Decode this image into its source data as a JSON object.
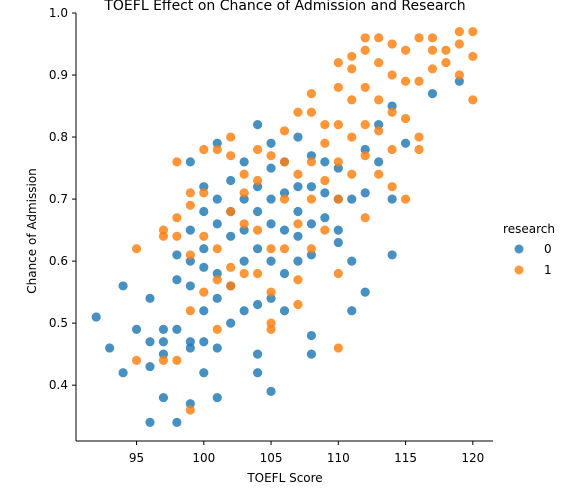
{
  "chart_data": {
    "type": "scatter",
    "title": "TOEFL Effect on Chance of Admission and Research",
    "xlabel": "TOEFL Score",
    "ylabel": "Chance of Admission",
    "xlim": [
      90.5,
      121.5
    ],
    "ylim": [
      0.31,
      1.0
    ],
    "xticks": [
      95,
      100,
      105,
      110,
      115,
      120
    ],
    "yticks": [
      0.4,
      0.5,
      0.6,
      0.7,
      0.8,
      0.9,
      1.0
    ],
    "grid": false,
    "legend": {
      "title": "research",
      "placement": "right",
      "entries": [
        "0",
        "1"
      ]
    },
    "series": [
      {
        "name": "0",
        "color": "#1f77b4",
        "points": [
          [
            92,
            0.51
          ],
          [
            93,
            0.46
          ],
          [
            94,
            0.42
          ],
          [
            94,
            0.56
          ],
          [
            95,
            0.49
          ],
          [
            96,
            0.54
          ],
          [
            96,
            0.47
          ],
          [
            96,
            0.43
          ],
          [
            96,
            0.34
          ],
          [
            97,
            0.49
          ],
          [
            97,
            0.47
          ],
          [
            97,
            0.45
          ],
          [
            97,
            0.38
          ],
          [
            98,
            0.49
          ],
          [
            98,
            0.34
          ],
          [
            98,
            0.57
          ],
          [
            98,
            0.61
          ],
          [
            99,
            0.46
          ],
          [
            99,
            0.56
          ],
          [
            99,
            0.47
          ],
          [
            99,
            0.37
          ],
          [
            99,
            0.6
          ],
          [
            99,
            0.65
          ],
          [
            99,
            0.76
          ],
          [
            100,
            0.42
          ],
          [
            100,
            0.47
          ],
          [
            100,
            0.52
          ],
          [
            100,
            0.59
          ],
          [
            100,
            0.62
          ],
          [
            100,
            0.68
          ],
          [
            100,
            0.72
          ],
          [
            101,
            0.38
          ],
          [
            101,
            0.46
          ],
          [
            101,
            0.54
          ],
          [
            101,
            0.58
          ],
          [
            101,
            0.66
          ],
          [
            101,
            0.7
          ],
          [
            101,
            0.79
          ],
          [
            102,
            0.5
          ],
          [
            102,
            0.56
          ],
          [
            102,
            0.64
          ],
          [
            102,
            0.68
          ],
          [
            102,
            0.73
          ],
          [
            103,
            0.52
          ],
          [
            103,
            0.6
          ],
          [
            103,
            0.65
          ],
          [
            103,
            0.7
          ],
          [
            103,
            0.76
          ],
          [
            104,
            0.42
          ],
          [
            104,
            0.45
          ],
          [
            104,
            0.53
          ],
          [
            104,
            0.62
          ],
          [
            104,
            0.68
          ],
          [
            104,
            0.72
          ],
          [
            104,
            0.82
          ],
          [
            105,
            0.39
          ],
          [
            105,
            0.54
          ],
          [
            105,
            0.6
          ],
          [
            105,
            0.66
          ],
          [
            105,
            0.7
          ],
          [
            105,
            0.75
          ],
          [
            105,
            0.79
          ],
          [
            106,
            0.52
          ],
          [
            106,
            0.58
          ],
          [
            106,
            0.65
          ],
          [
            106,
            0.71
          ],
          [
            106,
            0.76
          ],
          [
            107,
            0.6
          ],
          [
            107,
            0.64
          ],
          [
            107,
            0.68
          ],
          [
            107,
            0.72
          ],
          [
            107,
            0.8
          ],
          [
            108,
            0.45
          ],
          [
            108,
            0.48
          ],
          [
            108,
            0.61
          ],
          [
            108,
            0.66
          ],
          [
            108,
            0.72
          ],
          [
            108,
            0.77
          ],
          [
            109,
            0.67
          ],
          [
            109,
            0.71
          ],
          [
            109,
            0.76
          ],
          [
            110,
            0.63
          ],
          [
            110,
            0.65
          ],
          [
            110,
            0.7
          ],
          [
            110,
            0.75
          ],
          [
            111,
            0.52
          ],
          [
            111,
            0.6
          ],
          [
            111,
            0.7
          ],
          [
            112,
            0.55
          ],
          [
            112,
            0.71
          ],
          [
            112,
            0.78
          ],
          [
            113,
            0.76
          ],
          [
            113,
            0.82
          ],
          [
            114,
            0.61
          ],
          [
            114,
            0.7
          ],
          [
            114,
            0.85
          ],
          [
            115,
            0.79
          ],
          [
            117,
            0.87
          ],
          [
            119,
            0.89
          ]
        ]
      },
      {
        "name": "1",
        "color": "#ff7f0e",
        "points": [
          [
            95,
            0.62
          ],
          [
            95,
            0.44
          ],
          [
            97,
            0.44
          ],
          [
            97,
            0.64
          ],
          [
            97,
            0.65
          ],
          [
            98,
            0.44
          ],
          [
            98,
            0.64
          ],
          [
            98,
            0.67
          ],
          [
            98,
            0.76
          ],
          [
            99,
            0.36
          ],
          [
            99,
            0.52
          ],
          [
            99,
            0.61
          ],
          [
            99,
            0.69
          ],
          [
            99,
            0.71
          ],
          [
            100,
            0.55
          ],
          [
            100,
            0.64
          ],
          [
            100,
            0.71
          ],
          [
            100,
            0.78
          ],
          [
            101,
            0.49
          ],
          [
            101,
            0.57
          ],
          [
            101,
            0.62
          ],
          [
            101,
            0.78
          ],
          [
            102,
            0.56
          ],
          [
            102,
            0.59
          ],
          [
            102,
            0.68
          ],
          [
            102,
            0.77
          ],
          [
            102,
            0.8
          ],
          [
            103,
            0.58
          ],
          [
            103,
            0.66
          ],
          [
            103,
            0.71
          ],
          [
            103,
            0.74
          ],
          [
            104,
            0.58
          ],
          [
            104,
            0.65
          ],
          [
            104,
            0.73
          ],
          [
            104,
            0.78
          ],
          [
            105,
            0.49
          ],
          [
            105,
            0.5
          ],
          [
            105,
            0.55
          ],
          [
            105,
            0.62
          ],
          [
            105,
            0.77
          ],
          [
            106,
            0.62
          ],
          [
            106,
            0.7
          ],
          [
            106,
            0.76
          ],
          [
            106,
            0.81
          ],
          [
            107,
            0.53
          ],
          [
            107,
            0.57
          ],
          [
            107,
            0.66
          ],
          [
            107,
            0.74
          ],
          [
            107,
            0.84
          ],
          [
            108,
            0.62
          ],
          [
            108,
            0.7
          ],
          [
            108,
            0.76
          ],
          [
            108,
            0.84
          ],
          [
            108,
            0.87
          ],
          [
            109,
            0.65
          ],
          [
            109,
            0.73
          ],
          [
            109,
            0.79
          ],
          [
            109,
            0.82
          ],
          [
            110,
            0.46
          ],
          [
            110,
            0.58
          ],
          [
            110,
            0.7
          ],
          [
            110,
            0.76
          ],
          [
            110,
            0.82
          ],
          [
            110,
            0.88
          ],
          [
            110,
            0.92
          ],
          [
            111,
            0.74
          ],
          [
            111,
            0.8
          ],
          [
            111,
            0.86
          ],
          [
            111,
            0.91
          ],
          [
            111,
            0.93
          ],
          [
            112,
            0.67
          ],
          [
            112,
            0.77
          ],
          [
            112,
            0.82
          ],
          [
            112,
            0.88
          ],
          [
            112,
            0.94
          ],
          [
            112,
            0.96
          ],
          [
            113,
            0.74
          ],
          [
            113,
            0.81
          ],
          [
            113,
            0.86
          ],
          [
            113,
            0.92
          ],
          [
            113,
            0.96
          ],
          [
            114,
            0.72
          ],
          [
            114,
            0.78
          ],
          [
            114,
            0.84
          ],
          [
            114,
            0.9
          ],
          [
            114,
            0.95
          ],
          [
            115,
            0.7
          ],
          [
            115,
            0.83
          ],
          [
            115,
            0.89
          ],
          [
            115,
            0.94
          ],
          [
            116,
            0.78
          ],
          [
            116,
            0.8
          ],
          [
            116,
            0.89
          ],
          [
            116,
            0.96
          ],
          [
            117,
            0.91
          ],
          [
            117,
            0.94
          ],
          [
            117,
            0.96
          ],
          [
            118,
            0.92
          ],
          [
            118,
            0.94
          ],
          [
            119,
            0.9
          ],
          [
            119,
            0.95
          ],
          [
            119,
            0.97
          ],
          [
            120,
            0.86
          ],
          [
            120,
            0.93
          ],
          [
            120,
            0.97
          ]
        ]
      }
    ]
  }
}
